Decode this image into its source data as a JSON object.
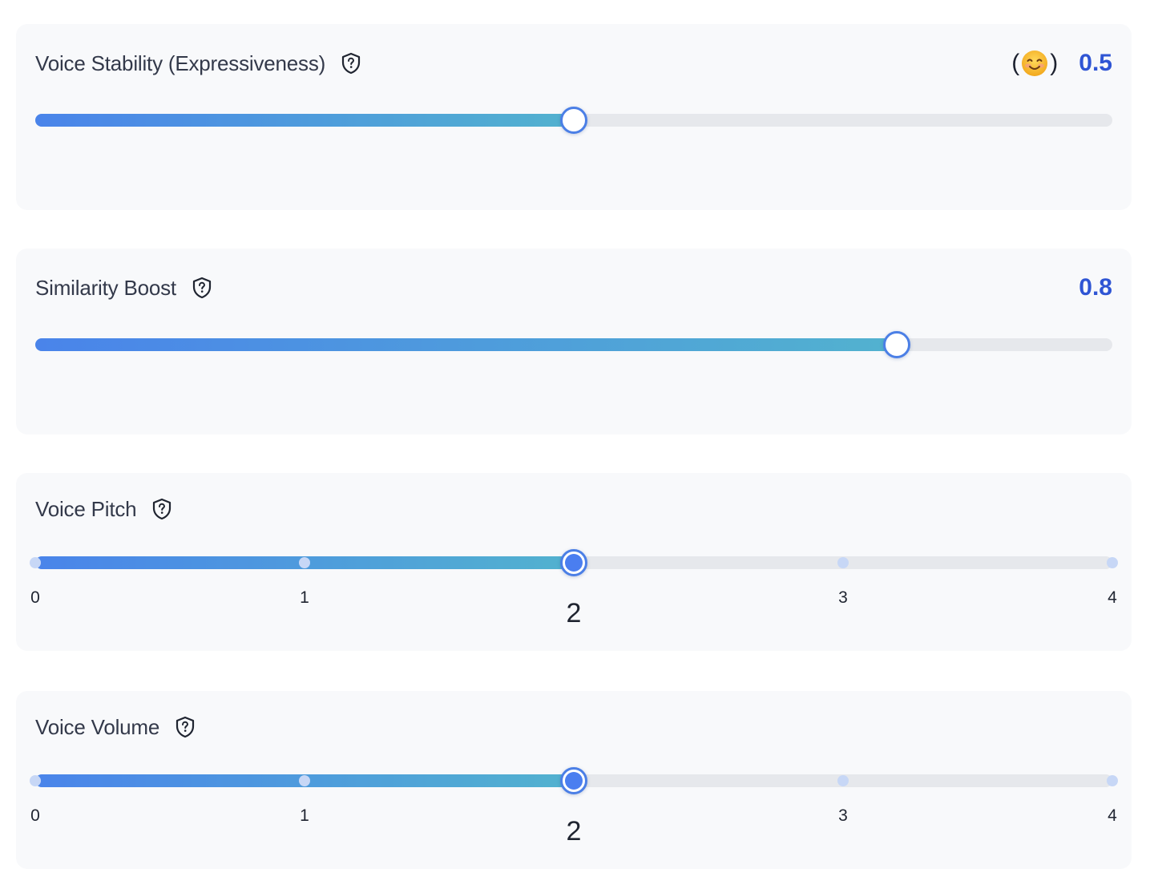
{
  "colors": {
    "accent": "#2f55d4",
    "fill_start": "#4a84ea",
    "fill_end": "#52b2cf",
    "track": "#e6e8ec",
    "panel_bg": "#f8f9fb"
  },
  "stability": {
    "label": "Voice Stability (Expressiveness)",
    "help_icon": "shield-question-icon",
    "emoji_open": "(",
    "emoji_close": ")",
    "emoji_icon": "smiling-face-icon",
    "value_text": "0.5",
    "value_fraction": 0.5
  },
  "similarity": {
    "label": "Similarity Boost",
    "help_icon": "shield-question-icon",
    "value_text": "0.8",
    "value_fraction": 0.8
  },
  "pitch": {
    "label": "Voice Pitch",
    "help_icon": "shield-question-icon",
    "ticks": [
      "0",
      "1",
      "2",
      "3",
      "4"
    ],
    "value": 2,
    "min": 0,
    "max": 4
  },
  "volume": {
    "label": "Voice Volume",
    "help_icon": "shield-question-icon",
    "ticks": [
      "0",
      "1",
      "2",
      "3",
      "4"
    ],
    "value": 2,
    "min": 0,
    "max": 4
  }
}
